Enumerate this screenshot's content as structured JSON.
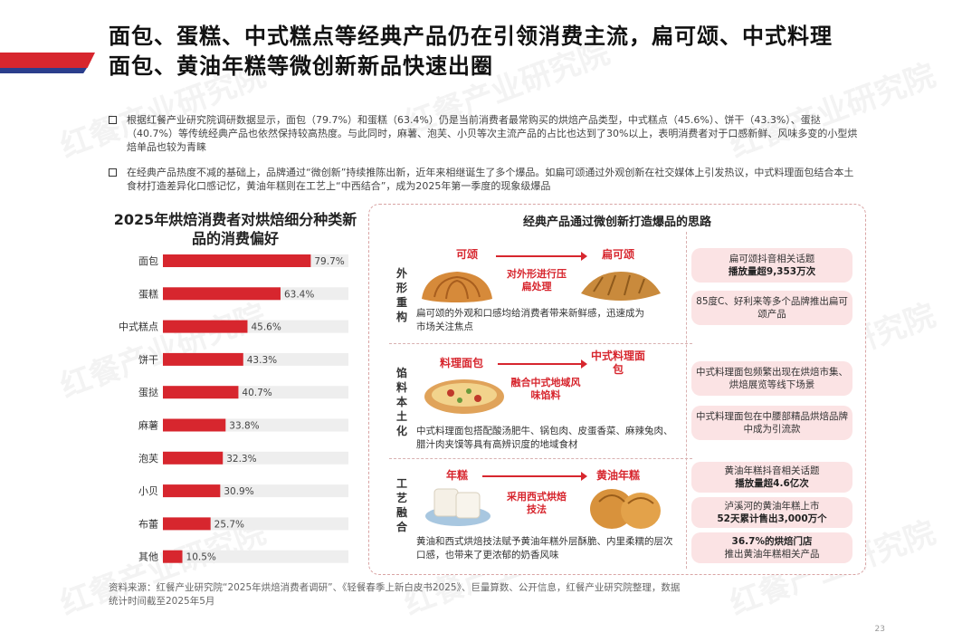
{
  "title": "面包、蛋糕、中式糕点等经典产品仍在引领消费主流，扁可颂、中式料理面包、黄油年糕等微创新新品快速出圈",
  "bullets": [
    "根据红餐产业研究院调研数据显示，面包（79.7%）和蛋糕（63.4%）仍是当前消费者最常购买的烘焙产品类型，中式糕点（45.6%）、饼干（43.3%）、蛋挞（40.7%）等传统经典产品也依然保持较高热度。与此同时，麻薯、泡芙、小贝等次主流产品的占比也达到了30%以上，表明消费者对于口感新鲜、风味多变的小型烘焙单品也较为青睐",
    "在经典产品热度不减的基础上，品牌通过“微创新”持续推陈出新，近年来相继诞生了多个爆品。如扁可颂通过外观创新在社交媒体上引发热议，中式料理面包结合本土食材打造差异化口感记忆，黄油年糕则在工艺上“中西结合”，成为2025年第一季度的现象级爆品"
  ],
  "chart_data": {
    "type": "bar",
    "orientation": "horizontal",
    "title": "2025年烘焙消费者对烘焙细分种类新品的消费偏好",
    "categories": [
      "面包",
      "蛋糕",
      "中式糕点",
      "饼干",
      "蛋挞",
      "麻薯",
      "泡芙",
      "小贝",
      "布蕾",
      "其他"
    ],
    "values": [
      79.7,
      63.4,
      45.6,
      43.3,
      40.7,
      33.8,
      32.3,
      30.9,
      25.7,
      10.5
    ],
    "value_labels": [
      "79.7%",
      "63.4%",
      "45.6%",
      "43.3%",
      "40.7%",
      "33.8%",
      "32.3%",
      "30.9%",
      "25.7%",
      "10.5%"
    ],
    "xlim": [
      0,
      100
    ],
    "bar_color": "#d7262e",
    "track_color": "#eeeeee",
    "grid": false
  },
  "panel": {
    "title": "经典产品通过微创新打造爆品的思路",
    "sections": [
      {
        "label": "外形重构",
        "from": "可颂",
        "to": "扁可颂",
        "method": "对外形进行压扁处理",
        "desc": "扁可颂的外观和口感均给消费者带来新鲜感，迅速成为市场关注焦点",
        "facts": [
          {
            "text": "扁可颂抖音相关话题",
            "bold": "播放量超9,353万次"
          },
          {
            "text": "85度C、好利来等多个品牌推出扁可颂产品",
            "bold": ""
          }
        ]
      },
      {
        "label": "馅料本土化",
        "from": "料理面包",
        "to": "中式料理面包",
        "method": "融合中式地域风味馅料",
        "desc": "中式料理面包搭配酸汤肥牛、锅包肉、皮蛋香菜、麻辣兔肉、腊汁肉夹馍等具有高辨识度的地域食材",
        "facts": [
          {
            "text": "中式料理面包频繁出现在烘焙市集、烘焙展览等线下场景",
            "bold": ""
          },
          {
            "text": "中式料理面包在中腰部精品烘焙品牌中成为引流款",
            "bold": ""
          }
        ]
      },
      {
        "label": "工艺融合",
        "from": "年糕",
        "to": "黄油年糕",
        "method": "采用西式烘焙技法",
        "desc": "黄油和西式烘焙技法赋予黄油年糕外层酥脆、内里柔糯的层次口感，也带来了更浓郁的奶香风味",
        "facts": [
          {
            "text": "黄油年糕抖音相关话题",
            "bold": "播放量超4.6亿次"
          },
          {
            "text": "泸溪河的黄油年糕上市",
            "bold": "52天累计售出3,000万个"
          },
          {
            "text": "推出黄油年糕相关产品",
            "bold": "36.7%的烘焙门店"
          }
        ]
      }
    ]
  },
  "source": "资料来源：红餐产业研究院“2025年烘焙消费者调研”、《轻餐春季上新白皮书2025》、巨量算数、公开信息，红餐产业研究院整理，数据统计时间截至2025年5月",
  "page_number": "23",
  "watermark": "红餐产业研究院"
}
